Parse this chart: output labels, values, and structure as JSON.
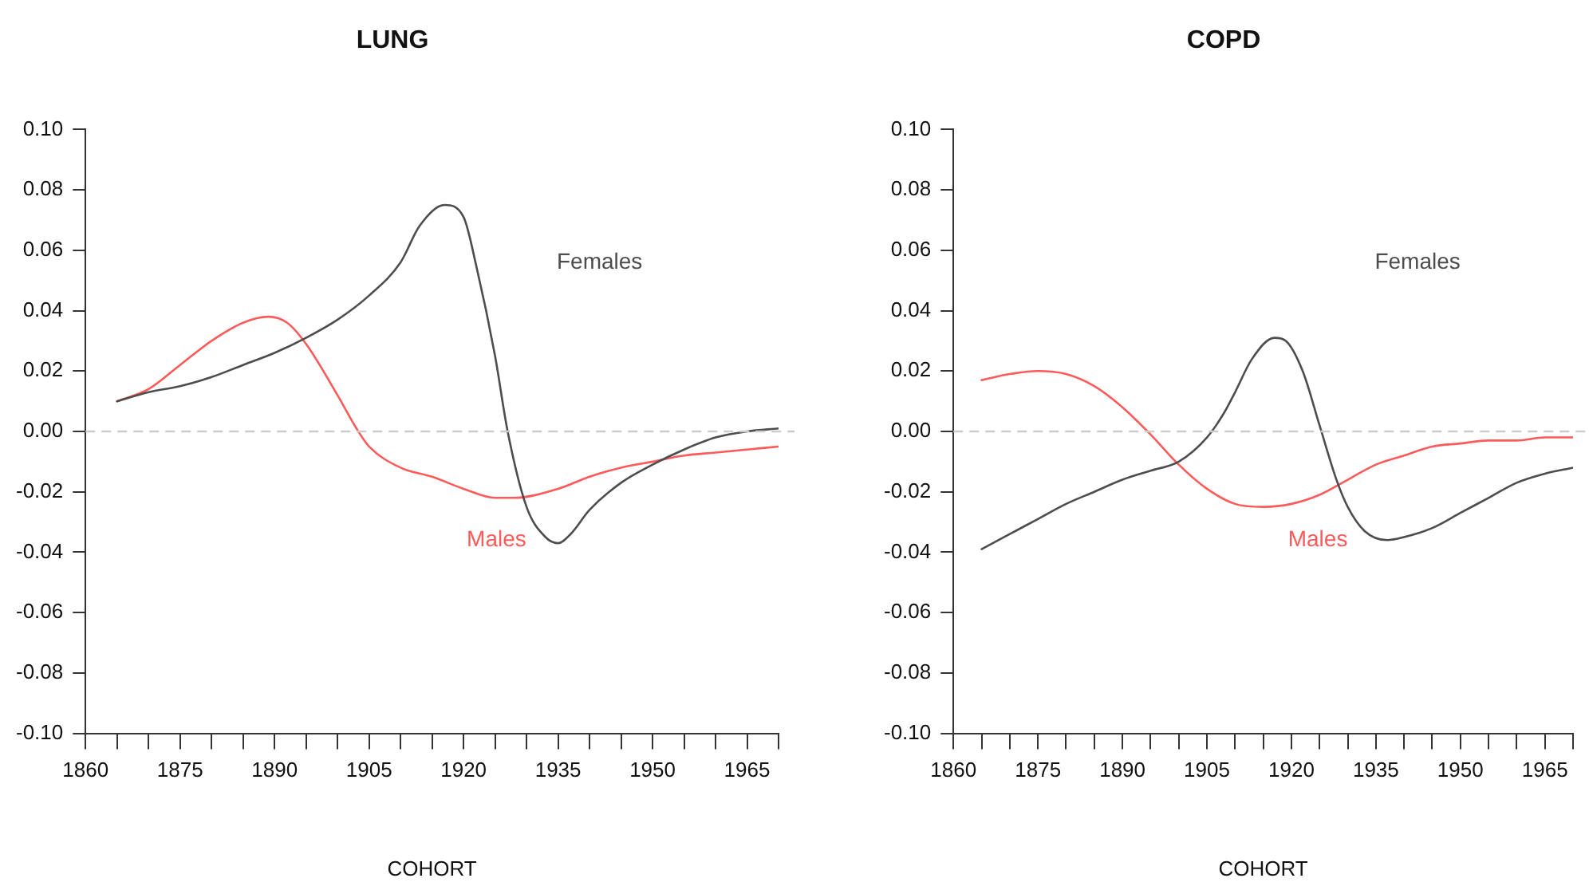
{
  "chart_data": [
    {
      "type": "line",
      "title": "LUNG",
      "xlabel": "COHORT",
      "grid": false,
      "legend": false,
      "marker": "none",
      "line_style": "solid",
      "xlim": [
        1860,
        1970
      ],
      "xticks": [
        1860,
        {
          "value": 1865,
          "label": null
        },
        {
          "value": 1870,
          "label": null
        },
        1875,
        {
          "value": 1880,
          "label": null
        },
        {
          "value": 1885,
          "label": null
        },
        1890,
        {
          "value": 1895,
          "label": null
        },
        {
          "value": 1900,
          "label": null
        },
        1905,
        {
          "value": 1910,
          "label": null
        },
        {
          "value": 1915,
          "label": null
        },
        1920,
        {
          "value": 1925,
          "label": null
        },
        {
          "value": 1930,
          "label": null
        },
        1935,
        {
          "value": 1940,
          "label": null
        },
        {
          "value": 1945,
          "label": null
        },
        1950,
        {
          "value": 1955,
          "label": null
        },
        {
          "value": 1960,
          "label": null
        },
        1965,
        {
          "value": 1970,
          "label": null
        }
      ],
      "ylim": [
        -0.1,
        0.1
      ],
      "yticks": [
        {
          "value": -0.1,
          "label": "-0.10"
        },
        {
          "value": -0.08,
          "label": "-0.08"
        },
        {
          "value": -0.06,
          "label": "-0.06"
        },
        {
          "value": -0.04,
          "label": "-0.04"
        },
        {
          "value": -0.02,
          "label": "-0.02"
        },
        {
          "value": 0,
          "label": "0.00"
        },
        {
          "value": 0.02,
          "label": "0.02"
        },
        {
          "value": 0.04,
          "label": "0.04"
        },
        {
          "value": 0.06,
          "label": "0.06"
        },
        {
          "value": 0.08,
          "label": "0.08"
        },
        {
          "value": 0.1,
          "label": "0.10"
        }
      ],
      "ref_lines": [
        {
          "axis": "y",
          "value": 0,
          "color": "#cccccc",
          "line_style": "dashed"
        }
      ],
      "series": [
        {
          "name": "Females",
          "color": "#4d4d4d",
          "x": [
            1865,
            1870,
            1875,
            1880,
            1885,
            1890,
            1895,
            1900,
            1905,
            1910,
            1913,
            1917,
            1920,
            1922,
            1925,
            1927,
            1930,
            1933,
            1935,
            1937,
            1940,
            1945,
            1950,
            1955,
            1960,
            1965,
            1970
          ],
          "values": [
            0.01,
            0.013,
            0.015,
            0.018,
            0.022,
            0.026,
            0.031,
            0.037,
            0.045,
            0.056,
            0.068,
            0.075,
            0.071,
            0.055,
            0.025,
            0.0,
            -0.025,
            -0.035,
            -0.037,
            -0.034,
            -0.026,
            -0.017,
            -0.011,
            -0.006,
            -0.002,
            0.0,
            0.001
          ]
        },
        {
          "name": "Males",
          "color": "#ff5a5a",
          "x": [
            1865,
            1870,
            1875,
            1880,
            1885,
            1889,
            1892,
            1895,
            1900,
            1903,
            1905,
            1910,
            1915,
            1920,
            1925,
            1928,
            1935,
            1940,
            1945,
            1950,
            1955,
            1960,
            1965,
            1970
          ],
          "values": [
            0.01,
            0.014,
            0.022,
            0.03,
            0.036,
            0.038,
            0.036,
            0.029,
            0.012,
            0.001,
            -0.005,
            -0.012,
            -0.015,
            -0.019,
            -0.022,
            -0.022,
            -0.019,
            -0.015,
            -0.012,
            -0.01,
            -0.008,
            -0.007,
            -0.006,
            -0.005
          ]
        }
      ]
    },
    {
      "type": "line",
      "title": "COPD",
      "xlabel": "COHORT",
      "grid": false,
      "legend": false,
      "marker": "none",
      "line_style": "solid",
      "xlim": [
        1860,
        1970
      ],
      "xticks": [
        1860,
        {
          "value": 1865,
          "label": null
        },
        {
          "value": 1870,
          "label": null
        },
        1875,
        {
          "value": 1880,
          "label": null
        },
        {
          "value": 1885,
          "label": null
        },
        1890,
        {
          "value": 1895,
          "label": null
        },
        {
          "value": 1900,
          "label": null
        },
        1905,
        {
          "value": 1910,
          "label": null
        },
        {
          "value": 1915,
          "label": null
        },
        1920,
        {
          "value": 1925,
          "label": null
        },
        {
          "value": 1930,
          "label": null
        },
        1935,
        {
          "value": 1940,
          "label": null
        },
        {
          "value": 1945,
          "label": null
        },
        1950,
        {
          "value": 1955,
          "label": null
        },
        {
          "value": 1960,
          "label": null
        },
        1965,
        {
          "value": 1970,
          "label": null
        }
      ],
      "ylim": [
        -0.1,
        0.1
      ],
      "yticks": [
        {
          "value": -0.1,
          "label": "-0.10"
        },
        {
          "value": -0.08,
          "label": "-0.08"
        },
        {
          "value": -0.06,
          "label": "-0.06"
        },
        {
          "value": -0.04,
          "label": "-0.04"
        },
        {
          "value": -0.02,
          "label": "-0.02"
        },
        {
          "value": 0,
          "label": "0.00"
        },
        {
          "value": 0.02,
          "label": "0.02"
        },
        {
          "value": 0.04,
          "label": "0.04"
        },
        {
          "value": 0.06,
          "label": "0.06"
        },
        {
          "value": 0.08,
          "label": "0.08"
        },
        {
          "value": 0.1,
          "label": "0.10"
        }
      ],
      "ref_lines": [
        {
          "axis": "y",
          "value": 0,
          "color": "#cccccc",
          "line_style": "dashed"
        }
      ],
      "series": [
        {
          "name": "Females",
          "color": "#4d4d4d",
          "x": [
            1865,
            1870,
            1875,
            1880,
            1885,
            1890,
            1895,
            1900,
            1905,
            1908,
            1910,
            1913,
            1917,
            1919,
            1922,
            1925,
            1928,
            1930,
            1933,
            1937,
            1940,
            1945,
            1950,
            1955,
            1960,
            1965,
            1970
          ],
          "values": [
            -0.039,
            -0.034,
            -0.029,
            -0.024,
            -0.02,
            -0.016,
            -0.013,
            -0.01,
            -0.002,
            0.006,
            0.013,
            0.024,
            0.031,
            0.03,
            0.02,
            0.002,
            -0.016,
            -0.025,
            -0.033,
            -0.036,
            -0.035,
            -0.032,
            -0.027,
            -0.022,
            -0.017,
            -0.014,
            -0.012
          ]
        },
        {
          "name": "Males",
          "color": "#ff5a5a",
          "x": [
            1865,
            1870,
            1875,
            1880,
            1885,
            1890,
            1895,
            1900,
            1905,
            1910,
            1915,
            1920,
            1925,
            1930,
            1935,
            1940,
            1945,
            1950,
            1955,
            1960,
            1965,
            1970
          ],
          "values": [
            0.017,
            0.019,
            0.02,
            0.019,
            0.015,
            0.008,
            -0.001,
            -0.011,
            -0.019,
            -0.024,
            -0.025,
            -0.024,
            -0.021,
            -0.016,
            -0.011,
            -0.008,
            -0.005,
            -0.004,
            -0.003,
            -0.003,
            -0.002,
            -0.002
          ]
        }
      ]
    }
  ]
}
